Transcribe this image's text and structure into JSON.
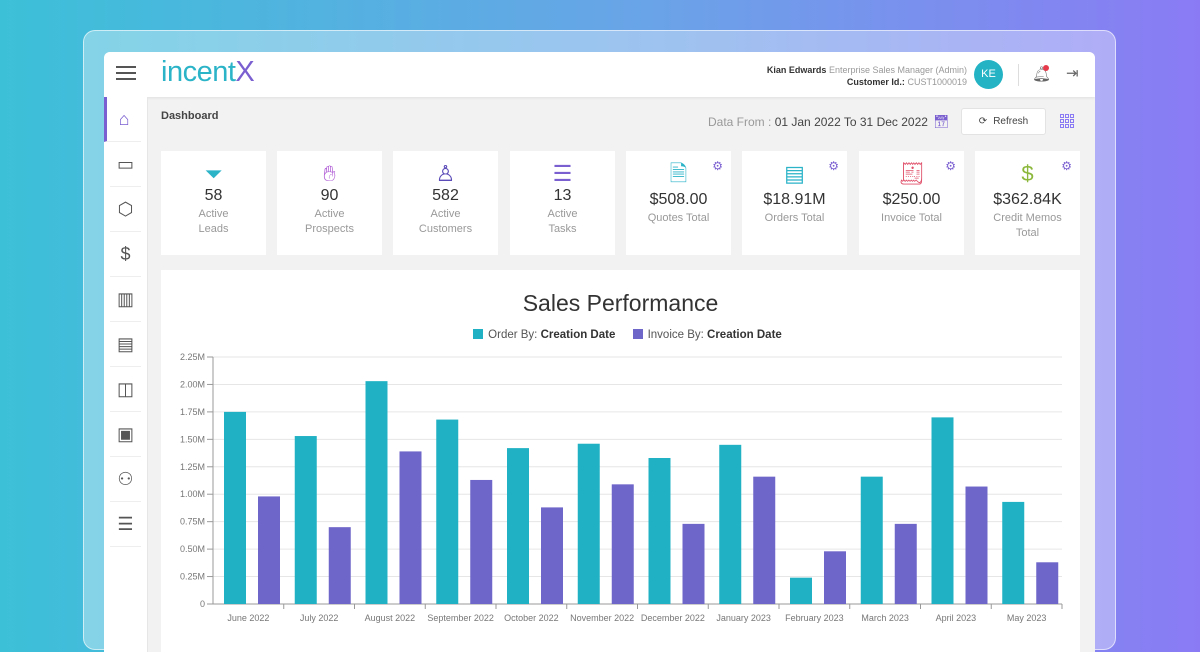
{
  "header": {
    "logo": "incent",
    "logo_accent": "X",
    "user_name": "Kian Edwards",
    "user_role": "Enterprise Sales Manager (Admin)",
    "customer_label": "Customer Id.:",
    "customer_id": "CUST1000019",
    "avatar_initials": "KE"
  },
  "sidebar": {
    "items": [
      {
        "icon": "home-icon"
      },
      {
        "icon": "crm-icon"
      },
      {
        "icon": "box-icon"
      },
      {
        "icon": "dollar-icon"
      },
      {
        "icon": "building-icon"
      },
      {
        "icon": "cash-register-icon"
      },
      {
        "icon": "shopping-bag-icon"
      },
      {
        "icon": "id-card-icon"
      },
      {
        "icon": "add-user-icon"
      },
      {
        "icon": "sliders-icon"
      }
    ]
  },
  "toolbar": {
    "breadcrumb": "Dashboard",
    "data_from_label": "Data From :",
    "data_range": "01 Jan 2022 To 31 Dec 2022",
    "refresh_label": "Refresh"
  },
  "cards": [
    {
      "value": "58",
      "label1": "Active",
      "label2": "Leads",
      "icon": "funnel-icon",
      "color": "#2bb3c8"
    },
    {
      "value": "90",
      "label1": "Active",
      "label2": "Prospects",
      "icon": "hand-chart-icon",
      "color": "#b15fd6"
    },
    {
      "value": "582",
      "label1": "Active",
      "label2": "Customers",
      "icon": "customer-icon",
      "color": "#5a4bb8"
    },
    {
      "value": "13",
      "label1": "Active",
      "label2": "Tasks",
      "icon": "checklist-icon",
      "color": "#7a5fd0"
    },
    {
      "value": "$508.00",
      "label1": "",
      "label2": "Quotes Total",
      "icon": "quote-icon",
      "color": "#2bb3c8"
    },
    {
      "value": "$18.91M",
      "label1": "",
      "label2": "Orders Total",
      "icon": "register-icon",
      "color": "#2bb3c8"
    },
    {
      "value": "$250.00",
      "label1": "",
      "label2": "Invoice Total",
      "icon": "invoice-icon",
      "color": "#e0506a"
    },
    {
      "value": "$362.84K",
      "label1": "Credit Memos",
      "label2": "Total",
      "icon": "credit-memo-icon",
      "color": "#8bb83a"
    }
  ],
  "chart_data": {
    "type": "bar",
    "title": "Sales Performance",
    "categories": [
      "June 2022",
      "July 2022",
      "August 2022",
      "September 2022",
      "October 2022",
      "November 2022",
      "December 2022",
      "January 2023",
      "February 2023",
      "March 2023",
      "April 2023",
      "May 2023"
    ],
    "series": [
      {
        "name_prefix": "Order By:",
        "name": "Creation Date",
        "color": "#20b2c4",
        "values": [
          1.75,
          1.53,
          2.03,
          1.68,
          1.42,
          1.46,
          1.33,
          1.45,
          0.24,
          1.16,
          1.7,
          0.93
        ]
      },
      {
        "name_prefix": "Invoice By:",
        "name": "Creation Date",
        "color": "#6f66c9",
        "values": [
          0.98,
          0.7,
          1.39,
          1.13,
          0.88,
          1.09,
          0.73,
          1.16,
          0.48,
          0.73,
          1.07,
          0.38
        ]
      }
    ],
    "yunit": "M",
    "ylim": [
      0,
      2.25
    ],
    "yticks": [
      "0",
      "0.25M",
      "0.50M",
      "0.75M",
      "1.00M",
      "1.25M",
      "1.50M",
      "1.75M",
      "2.00M",
      "2.25M"
    ],
    "grid": true,
    "legend": "top"
  }
}
